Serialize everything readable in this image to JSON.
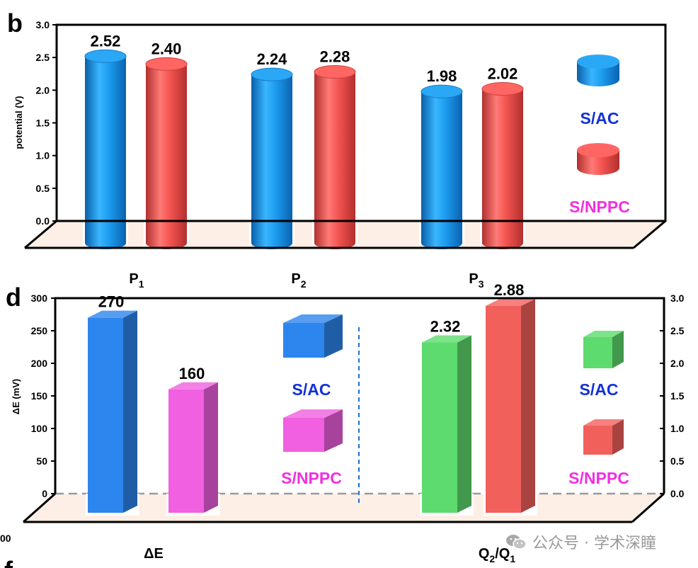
{
  "panel_b_letter": "b",
  "panel_d_letter": "d",
  "panel_f_letter": "f",
  "stray_label": "00",
  "colors": {
    "s_ac_blue": "#1E90E8",
    "s_nppc_red": "#F0504E",
    "d_blue": "#2D86EE",
    "d_magenta": "#F060E0",
    "d_green": "#5EDB6E",
    "d_red": "#F2605C",
    "floor": "#FDEFE6",
    "legend_blue_text": "#1230D8",
    "legend_magenta_text": "#F030E0"
  },
  "watermark": "公众号 · 学术深瞳",
  "chart_data": [
    {
      "type": "bar",
      "panel": "b",
      "ylabel": "potential (V)",
      "ylim": [
        0,
        3.0
      ],
      "yticks": [
        "0.0",
        "0.5",
        "1.0",
        "1.5",
        "2.0",
        "2.5",
        "3.0"
      ],
      "categories": [
        {
          "main": "P",
          "sub": "1"
        },
        {
          "main": "P",
          "sub": "2"
        },
        {
          "main": "P",
          "sub": "3"
        }
      ],
      "series": [
        {
          "name": "S/AC",
          "values": [
            2.52,
            2.24,
            1.98
          ],
          "labels": [
            "2.52",
            "2.24",
            "1.98"
          ]
        },
        {
          "name": "S/NPPC",
          "values": [
            2.4,
            2.28,
            2.02
          ],
          "labels": [
            "2.40",
            "2.28",
            "2.02"
          ]
        }
      ],
      "legend": [
        "S/AC",
        "S/NPPC"
      ]
    },
    {
      "type": "bar",
      "panel": "d",
      "ylabel": "ΔE (mV)",
      "ylim": [
        0,
        300
      ],
      "yticks": [
        "0",
        "50",
        "100",
        "150",
        "200",
        "250",
        "300"
      ],
      "ylim_right": [
        0,
        3.0
      ],
      "yticks_right": [
        "0.0",
        "0.5",
        "1.0",
        "1.5",
        "2.0",
        "2.5",
        "3.0"
      ],
      "groups": [
        {
          "category": {
            "main": "ΔE",
            "sub": ""
          },
          "axis": "left",
          "series": [
            {
              "name": "S/AC",
              "value": 270,
              "label": "270"
            },
            {
              "name": "S/NPPC",
              "value": 160,
              "label": "160"
            }
          ],
          "legend": [
            "S/AC",
            "S/NPPC"
          ]
        },
        {
          "category": {
            "main": "Q",
            "sub": "2",
            "sep": "/Q",
            "sub2": "1"
          },
          "axis": "right",
          "series": [
            {
              "name": "S/AC",
              "value": 2.32,
              "label": "2.32"
            },
            {
              "name": "S/NPPC",
              "value": 2.88,
              "label": "2.88"
            }
          ],
          "legend": [
            "S/AC",
            "S/NPPC"
          ]
        }
      ]
    }
  ]
}
